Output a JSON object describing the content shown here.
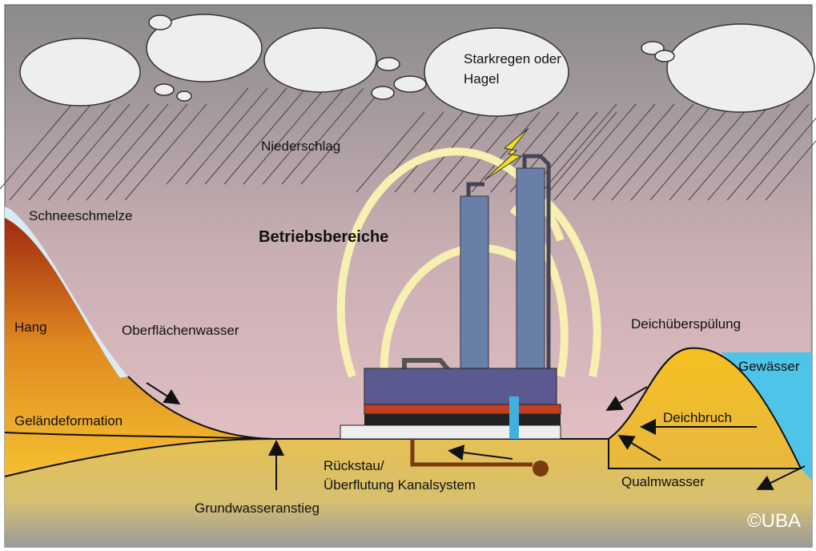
{
  "labels": {
    "storm_line1": "Starkregen oder",
    "storm_line2": "Hagel",
    "precipitation": "Niederschlag",
    "snowmelt": "Schneeschmelze",
    "facilities": "Betriebsbereiche",
    "slope": "Hang",
    "surface_water": "Oberflächenwasser",
    "dike_overflow": "Deichüberspülung",
    "water_body": "Gewässer",
    "terrain": "Geländeformation",
    "dike_breach": "Deichbruch",
    "backflow_line1": "Rückstau/",
    "backflow_line2": "Überflutung Kanalsystem",
    "seepage": "Qualmwasser",
    "groundwater_rise": "Grundwasseranstieg",
    "copyright": "©UBA"
  }
}
